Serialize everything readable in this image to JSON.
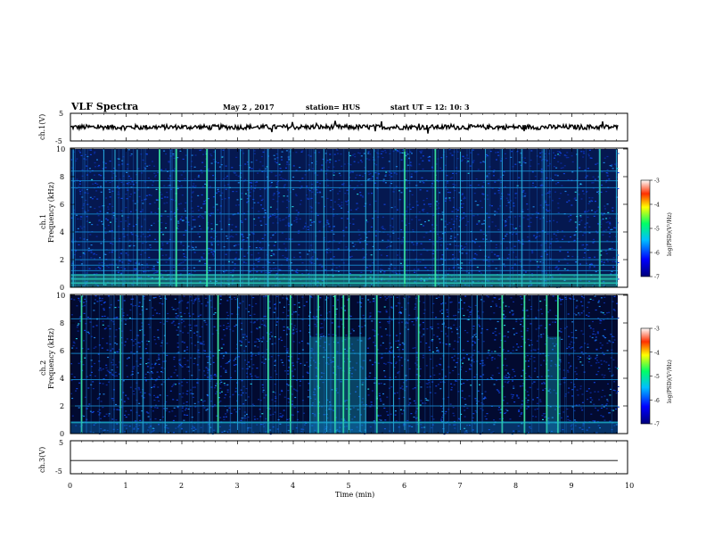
{
  "header": {
    "title": "VLF Spectra",
    "date": "May 2 , 2017",
    "station": "station= HUS",
    "start": "start  UT =   12: 10: 3"
  },
  "chart_data": [
    {
      "type": "line",
      "ylabel": "ch.1(V)",
      "ylim": [
        -5,
        5
      ],
      "ytick_labels": [
        "5",
        "-5"
      ],
      "series": [
        {
          "level": 0.0,
          "amplitude": 0.3,
          "style": "noisy-trace"
        }
      ]
    },
    {
      "type": "heatmap",
      "ylabel": "ch.1\nFrequency (kHz)",
      "ylim": [
        0,
        10
      ],
      "ytick_labels": [
        "0",
        "2",
        "4",
        "6",
        "8",
        "10"
      ],
      "xlim": [
        0,
        10
      ],
      "spike_times_min": [
        0.05,
        0.6,
        0.8,
        1.2,
        1.6,
        1.9,
        2.1,
        2.45,
        2.6,
        3.05,
        3.2,
        3.55,
        3.95,
        4.4,
        4.55,
        5.0,
        5.3,
        5.45,
        6.0,
        6.55,
        6.7,
        7.0,
        7.45,
        7.75,
        8.1,
        8.5,
        9.1,
        9.5,
        9.8
      ],
      "horizontal_bands_khz": [
        0.3,
        0.6,
        0.9,
        1.2,
        1.6,
        2.0,
        2.7,
        3.3,
        4.0,
        5.3,
        7.2,
        7.7,
        8.4
      ],
      "colorbar": {
        "label": "log(PSD)(V²/Hz)",
        "range": [
          -7,
          -3
        ],
        "ticks": [
          "-3",
          "-4",
          "-5",
          "-6",
          "-7"
        ]
      }
    },
    {
      "type": "heatmap",
      "ylabel": "ch.2\nFrequency (kHz)",
      "ylim": [
        0,
        10
      ],
      "ytick_labels": [
        "0",
        "2",
        "4",
        "6",
        "8",
        "10"
      ],
      "xlim": [
        0,
        10
      ],
      "spike_times_min": [
        0.2,
        0.9,
        1.3,
        1.7,
        2.5,
        2.65,
        3.0,
        3.55,
        3.95,
        4.3,
        4.45,
        4.6,
        4.75,
        4.9,
        5.0,
        5.2,
        5.3,
        5.5,
        5.8,
        6.0,
        6.25,
        6.7,
        7.0,
        7.3,
        7.75,
        8.15,
        8.55,
        8.75
      ],
      "burst_intervals_min": [
        [
          4.3,
          5.3
        ],
        [
          8.55,
          8.8
        ]
      ],
      "horizontal_bands_khz": [
        0.8,
        2.0,
        3.9,
        5.8,
        8.3
      ],
      "colorbar": {
        "label": "log(PSD)(V²/Hz)",
        "range": [
          -7,
          -3
        ],
        "ticks": [
          "-3",
          "-4",
          "-5",
          "-6",
          "-7"
        ]
      }
    },
    {
      "type": "line",
      "ylabel": "ch.3(V)",
      "ylim": [
        -5,
        5
      ],
      "ytick_labels": [
        "5",
        "-5"
      ],
      "series": [
        {
          "level": -1.0,
          "amplitude": 0.0,
          "style": "flat"
        }
      ]
    }
  ],
  "xaxis": {
    "label": "Time  (min)",
    "ticks": [
      "0",
      "1",
      "2",
      "3",
      "4",
      "5",
      "6",
      "7",
      "8",
      "9",
      "10"
    ],
    "range": [
      0,
      10
    ]
  }
}
